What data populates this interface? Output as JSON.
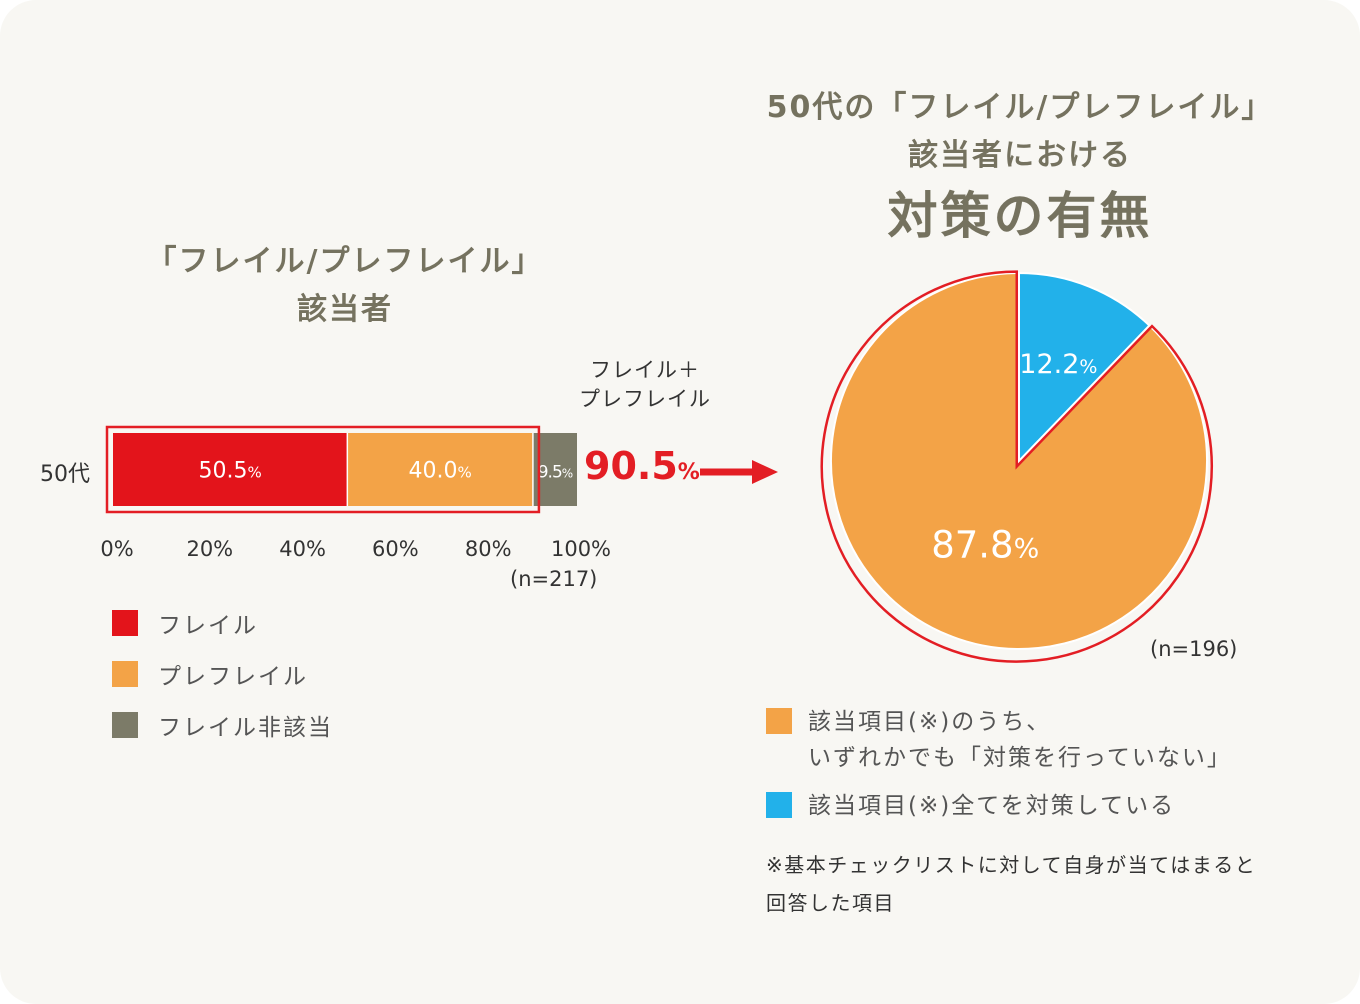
{
  "colors": {
    "frail": "#e3141b",
    "prefrail": "#f3a347",
    "not_applicable": "#7c7b68",
    "not_taking_measures": "#f3a347",
    "taking_all_measures": "#22b1ea",
    "highlight": "#e31e24",
    "title": "#75725f"
  },
  "left_title": {
    "line1": "「フレイル/プレフレイル」",
    "line2": "該当者"
  },
  "right_title": {
    "line1": "50代の「フレイル/プレフレイル」",
    "line2": "該当者における",
    "line3": "対策の有無"
  },
  "combined": {
    "label_line1": "フレイル＋",
    "label_line2": "プレフレイル",
    "value": "90.5",
    "unit": "%"
  },
  "bar_n": "(n=217)",
  "pie_n": "(n=196)",
  "bar_legend": [
    {
      "label": "フレイル",
      "color": "#e3141b"
    },
    {
      "label": "プレフレイル",
      "color": "#f3a347"
    },
    {
      "label": "フレイル非該当",
      "color": "#7c7b68"
    }
  ],
  "pie_legend": [
    {
      "label": "該当項目(※)のうち、\nいずれかでも「対策を行っていない」",
      "color": "#f3a347"
    },
    {
      "label": "該当項目(※)全てを対策している",
      "color": "#22b1ea"
    }
  ],
  "footnote": "※基本チェックリストに対して自身が当てはまると\n回答した項目",
  "chart_data": [
    {
      "type": "bar",
      "orientation": "horizontal-stacked",
      "categories": [
        "50代"
      ],
      "series": [
        {
          "name": "フレイル",
          "values": [
            50.5
          ],
          "label": "50.5",
          "color": "#e3141b"
        },
        {
          "name": "プレフレイル",
          "values": [
            40.0
          ],
          "label": "40.0",
          "color": "#f3a347"
        },
        {
          "name": "フレイル非該当",
          "values": [
            9.5
          ],
          "label": "9.5",
          "color": "#7c7b68"
        }
      ],
      "xlim": [
        0,
        100
      ],
      "xticks": [
        "0%",
        "20%",
        "40%",
        "60%",
        "80%",
        "100%"
      ],
      "grid": false,
      "legend": "bottom-left"
    },
    {
      "type": "pie",
      "slices": [
        {
          "name": "該当項目(※)全てを対策している",
          "value": 12.2,
          "label": "12.2",
          "color": "#22b1ea"
        },
        {
          "name": "該当項目(※)のうち、いずれかでも「対策を行っていない」",
          "value": 87.8,
          "label": "87.8",
          "color": "#f3a347"
        }
      ],
      "start": "top",
      "direction": "clockwise",
      "legend": "bottom"
    }
  ]
}
